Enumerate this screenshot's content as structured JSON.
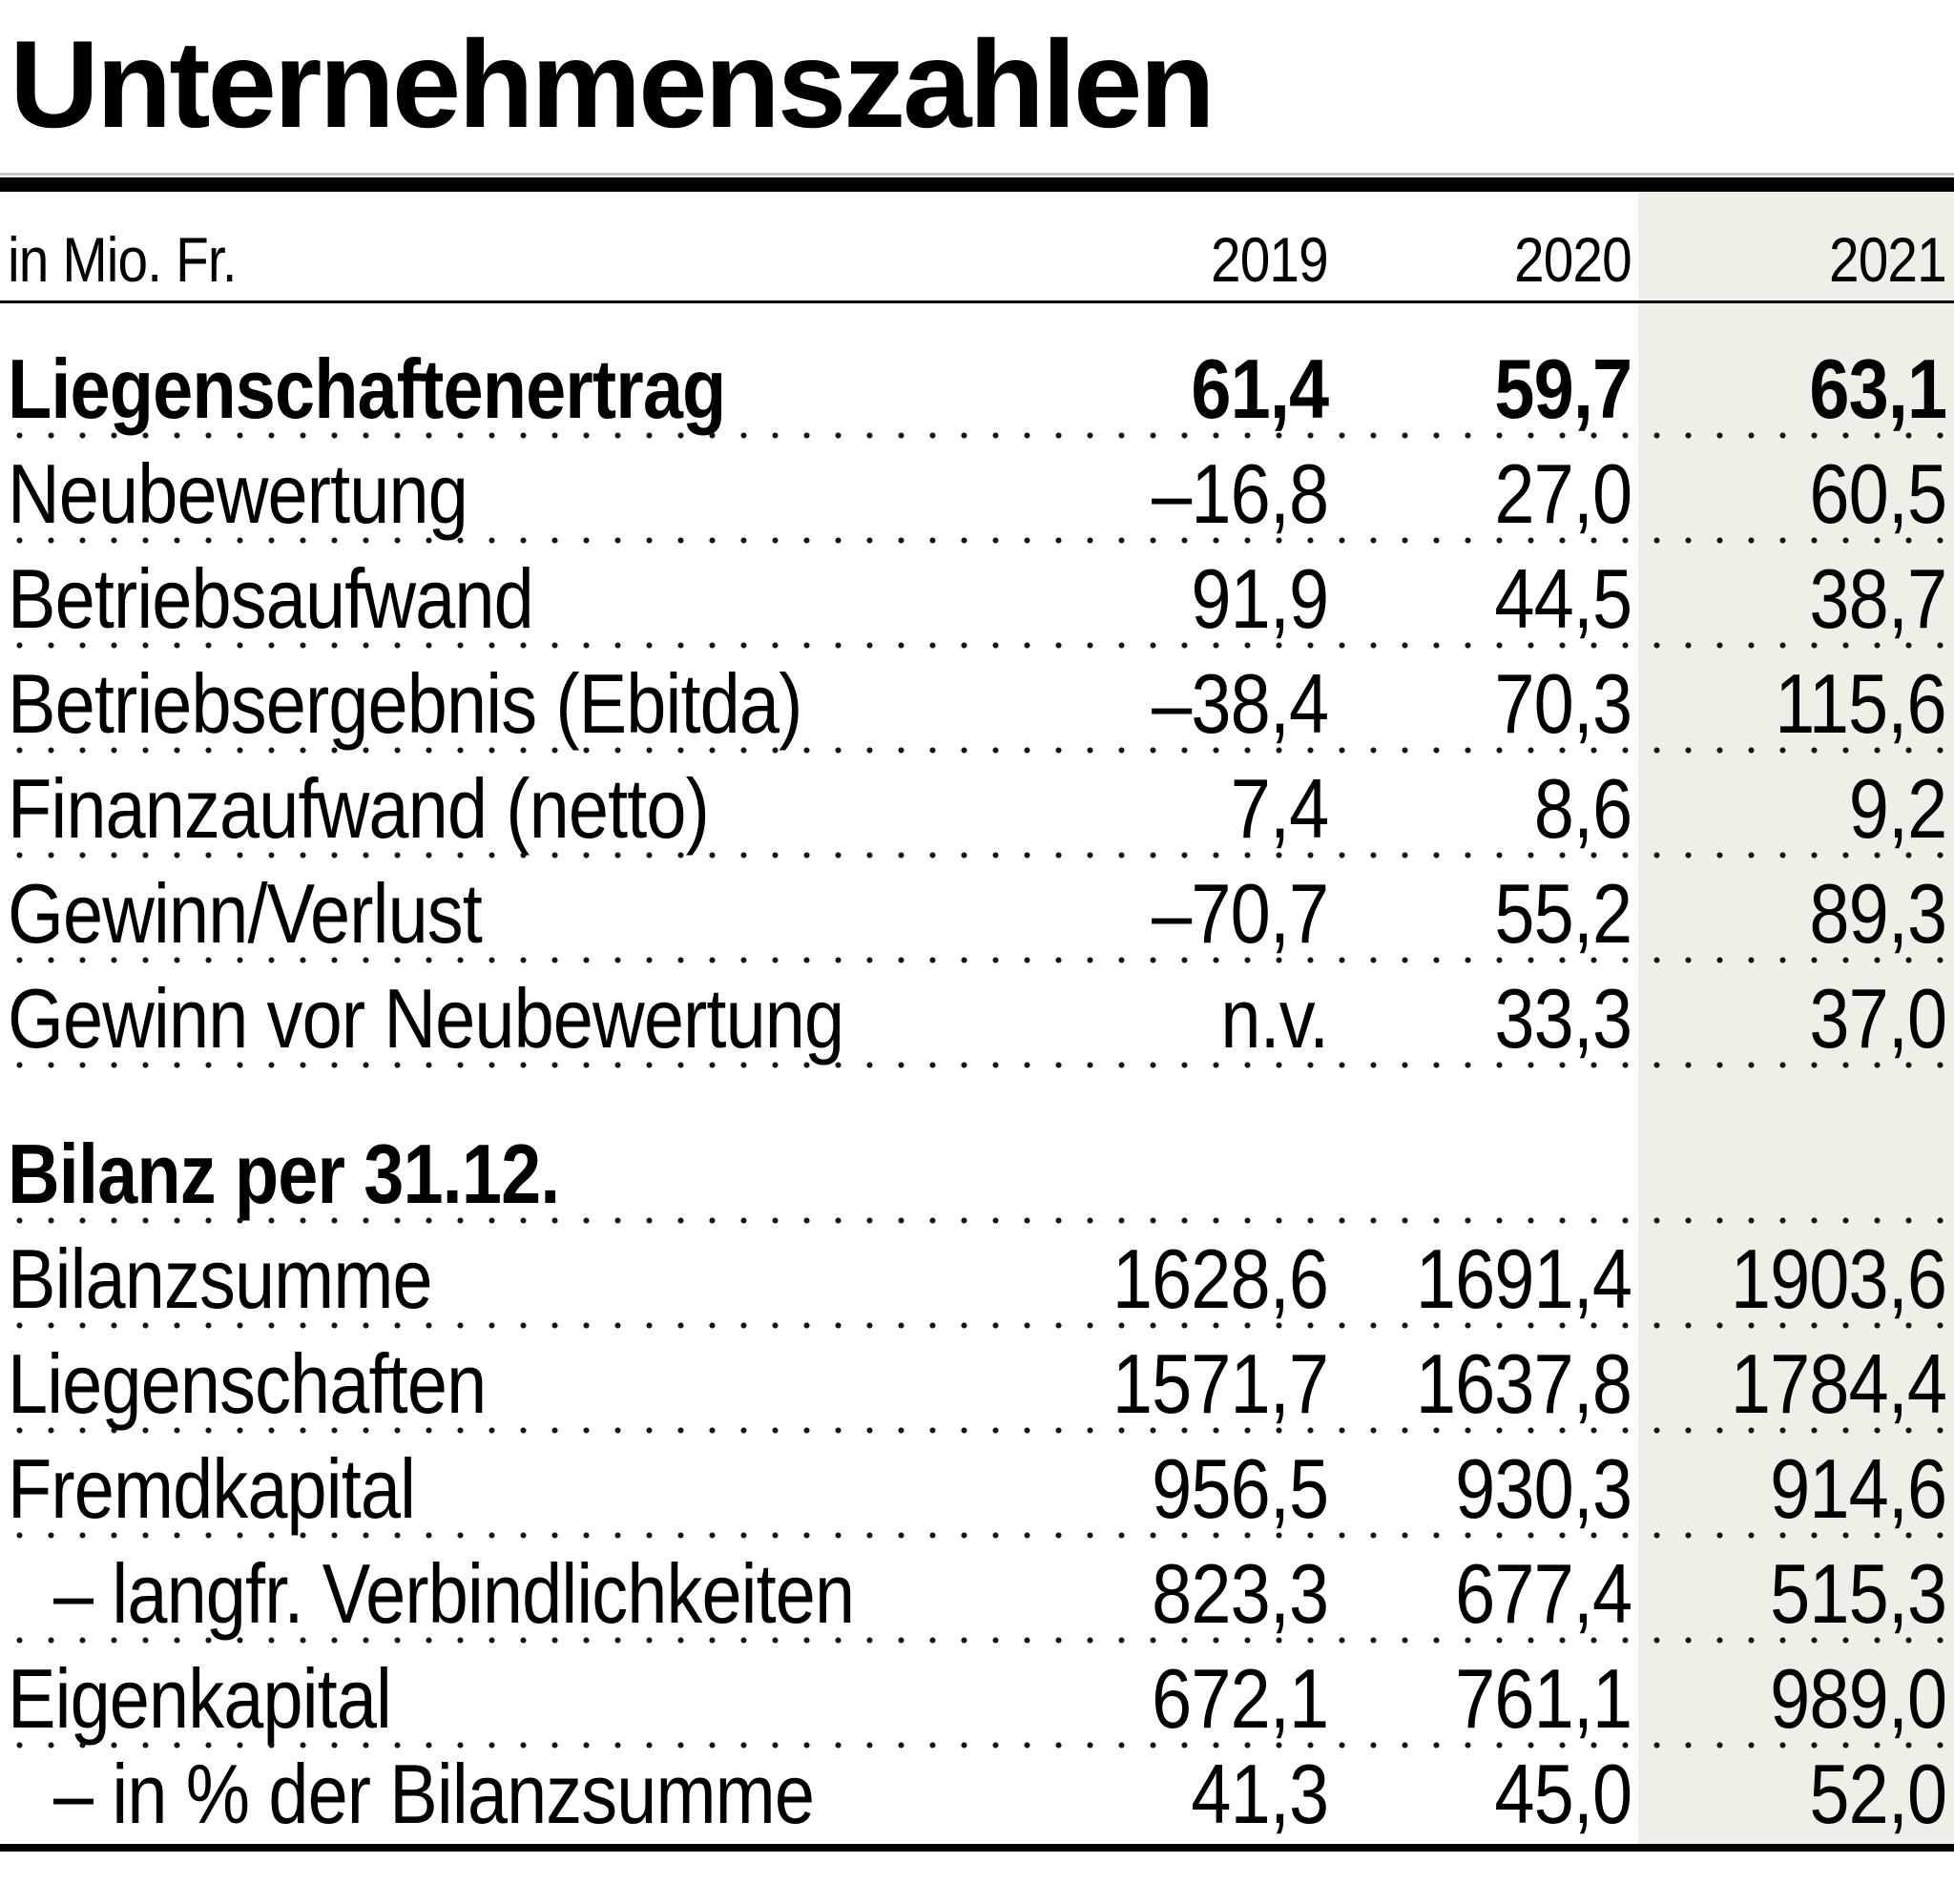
{
  "title": "Unternehmenszahlen",
  "table": {
    "unit_label": "in Mio. Fr.",
    "years": [
      "2019",
      "2020",
      "2021"
    ],
    "highlighted_year": "2021",
    "rows": [
      {
        "label": "Liegenschaftenertrag",
        "values": [
          "61,4",
          "59,7",
          "63,1"
        ],
        "style": "bold"
      },
      {
        "label": "Neubewertung",
        "values": [
          "–16,8",
          "27,0",
          "60,5"
        ],
        "style": "normal"
      },
      {
        "label": "Betriebsaufwand",
        "values": [
          "91,9",
          "44,5",
          "38,7"
        ],
        "style": "normal"
      },
      {
        "label": "Betriebsergebnis (Ebitda)",
        "values": [
          "–38,4",
          "70,3",
          "115,6"
        ],
        "style": "normal"
      },
      {
        "label": "Finanzaufwand (netto)",
        "values": [
          "7,4",
          "8,6",
          "9,2"
        ],
        "style": "normal"
      },
      {
        "label": "Gewinn/Verlust",
        "values": [
          "–70,7",
          "55,2",
          "89,3"
        ],
        "style": "normal"
      },
      {
        "label": "Gewinn vor Neubewertung",
        "values": [
          "n.v.",
          "33,3",
          "37,0"
        ],
        "style": "normal"
      },
      {
        "label": "Bilanz per 31.12.",
        "values": [
          "",
          "",
          ""
        ],
        "style": "section"
      },
      {
        "label": "Bilanzsumme",
        "values": [
          "1628,6",
          "1691,4",
          "1903,6"
        ],
        "style": "normal"
      },
      {
        "label": "Liegenschaften",
        "values": [
          "1571,7",
          "1637,8",
          "1784,4"
        ],
        "style": "normal"
      },
      {
        "label": "Fremdkapital",
        "values": [
          "956,5",
          "930,3",
          "914,6"
        ],
        "style": "normal"
      },
      {
        "label": "– langfr. Verbindlichkeiten",
        "values": [
          "823,3",
          "677,4",
          "515,3"
        ],
        "style": "indent"
      },
      {
        "label": "Eigenkapital",
        "values": [
          "672,1",
          "761,1",
          "989,0"
        ],
        "style": "normal"
      },
      {
        "label": "– in % der Bilanzsumme",
        "values": [
          "41,3",
          "45,0",
          "52,0"
        ],
        "style": "indent"
      }
    ]
  },
  "colors": {
    "highlight_column": "#efeee7",
    "text": "#000000",
    "rules": "#000000",
    "hairline": "#c8c8c8",
    "dots": "#141414"
  }
}
